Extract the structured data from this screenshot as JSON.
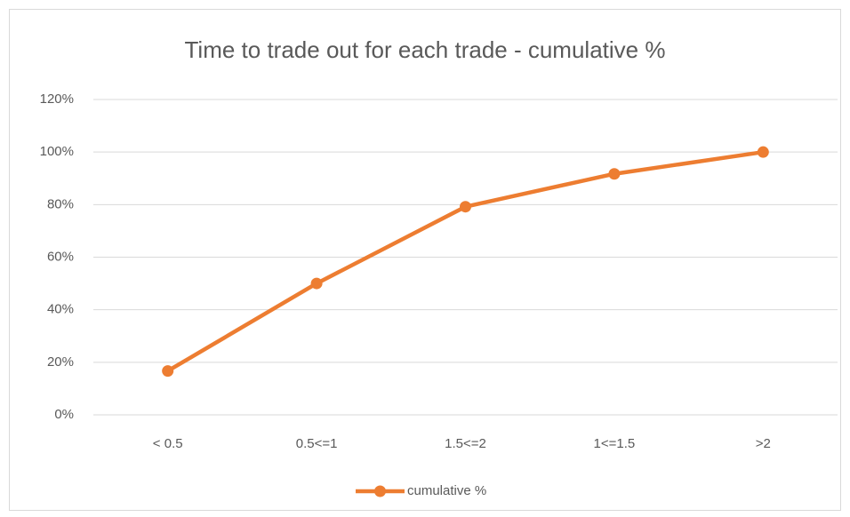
{
  "chart_data": {
    "type": "line",
    "title": "Time to trade out for each trade - cumulative %",
    "categories": [
      "< 0.5",
      "0.5<=1",
      "1.5<=2",
      "1<=1.5",
      ">2"
    ],
    "series": [
      {
        "name": "cumulative %",
        "color": "#ed7d31",
        "values": [
          16.7,
          50,
          79.2,
          91.7,
          100
        ]
      }
    ],
    "ylim": [
      0,
      120
    ],
    "yticks": [
      {
        "value": 0,
        "label": "0%"
      },
      {
        "value": 20,
        "label": "20%"
      },
      {
        "value": 40,
        "label": "40%"
      },
      {
        "value": 60,
        "label": "60%"
      },
      {
        "value": 80,
        "label": "80%"
      },
      {
        "value": 100,
        "label": "100%"
      },
      {
        "value": 120,
        "label": "120%"
      }
    ],
    "grid": true,
    "legend": "bottom"
  }
}
